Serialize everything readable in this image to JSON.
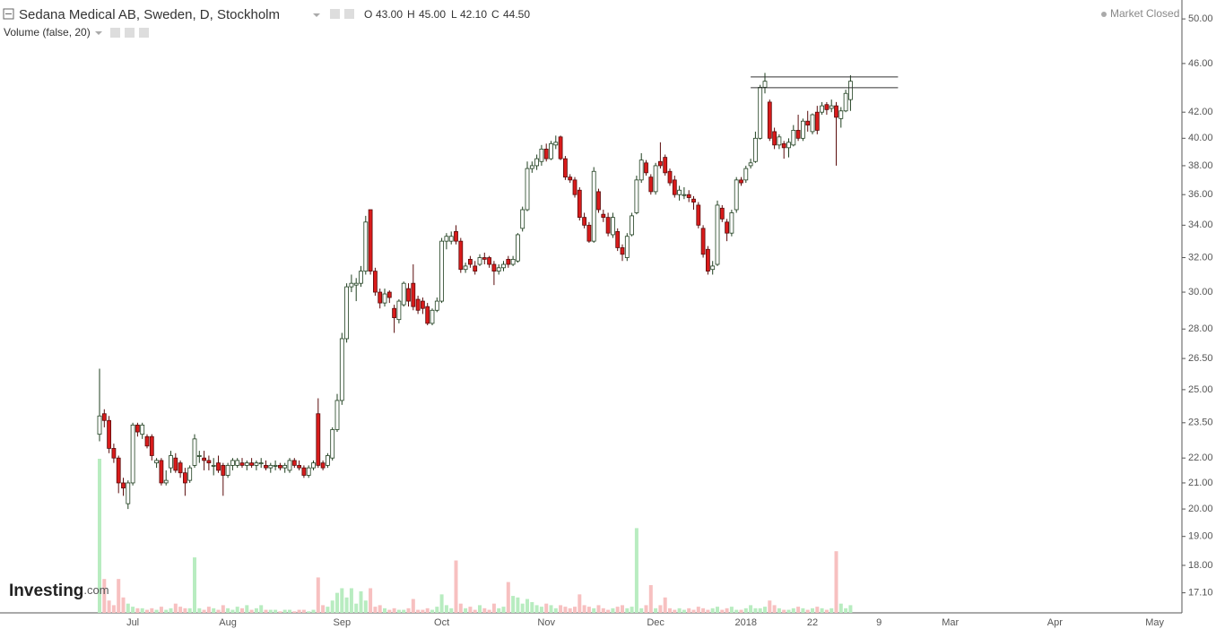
{
  "chart_data": {
    "type": "candlestick",
    "title": "Sedana Medical AB, Sweden, D, Stockholm",
    "ohlc_labels": [
      "O",
      "H",
      "L",
      "C"
    ],
    "ohlc_values": [
      "43.00",
      "45.00",
      "42.10",
      "44.50"
    ],
    "volume_label": "Volume (false, 20)",
    "status": "Market Closed",
    "logo": "Investing",
    "logo_suffix": ".com",
    "log_scale": true,
    "grid": false,
    "up_color": "#ffffff",
    "up_edge": "#1f3f1f",
    "down_color": "#d91b1b",
    "down_edge": "#5a0c0c",
    "volume_up_color": "#b8ecc0",
    "volume_down_color": "#f7c0c0",
    "ylim": [
      16.47,
      51.8
    ],
    "yticks": [
      {
        "value": 50,
        "label": "50.00"
      },
      {
        "value": 46,
        "label": "46.00"
      },
      {
        "value": 42,
        "label": "42.00"
      },
      {
        "value": 40,
        "label": "40.00"
      },
      {
        "value": 38,
        "label": "38.00"
      },
      {
        "value": 36,
        "label": "36.00"
      },
      {
        "value": 34,
        "label": "34.00"
      },
      {
        "value": 32,
        "label": "32.00"
      },
      {
        "value": 30,
        "label": "30.00"
      },
      {
        "value": 28,
        "label": "28.00"
      },
      {
        "value": 26.5,
        "label": "26.50"
      },
      {
        "value": 25,
        "label": "25.00"
      },
      {
        "value": 23.5,
        "label": "23.50"
      },
      {
        "value": 22,
        "label": "22.00"
      },
      {
        "value": 21,
        "label": "21.00"
      },
      {
        "value": 20,
        "label": "20.00"
      },
      {
        "value": 19,
        "label": "19.00"
      },
      {
        "value": 18,
        "label": "18.00"
      },
      {
        "value": 17.1,
        "label": "17.10"
      }
    ],
    "vlim": [
      0,
      100
    ],
    "hlines": [
      44.86,
      43.97
    ],
    "categories": [
      null,
      null,
      null,
      null,
      null,
      null,
      null,
      "Jul",
      null,
      null,
      null,
      null,
      null,
      null,
      null,
      null,
      null,
      null,
      null,
      null,
      null,
      null,
      null,
      null,
      null,
      null,
      null,
      "Aug",
      null,
      null,
      null,
      null,
      null,
      null,
      null,
      null,
      null,
      null,
      null,
      null,
      null,
      null,
      null,
      null,
      null,
      null,
      null,
      null,
      null,
      null,
      null,
      "Sep",
      null,
      null,
      null,
      null,
      null,
      null,
      null,
      null,
      null,
      null,
      null,
      null,
      null,
      null,
      null,
      null,
      null,
      null,
      null,
      null,
      "Oct",
      null,
      null,
      null,
      null,
      null,
      null,
      null,
      null,
      null,
      null,
      null,
      null,
      null,
      null,
      null,
      null,
      null,
      null,
      null,
      null,
      null,
      "Nov",
      null,
      null,
      null,
      null,
      null,
      null,
      null,
      null,
      null,
      null,
      null,
      null,
      null,
      null,
      null,
      null,
      null,
      null,
      null,
      null,
      null,
      null,
      "Dec",
      null,
      null,
      null,
      null,
      null,
      null,
      null,
      null,
      null,
      null,
      null,
      null,
      null,
      null,
      null,
      null,
      null,
      null,
      "2018",
      null,
      null,
      null,
      null,
      null,
      null,
      null,
      null,
      null,
      null,
      null,
      null,
      null,
      "22",
      null,
      null,
      null,
      null,
      null,
      null,
      null,
      null,
      null,
      null,
      null,
      null,
      null,
      "9",
      null,
      null,
      null,
      null,
      null,
      null,
      null,
      null,
      null,
      null,
      null,
      null,
      null,
      null,
      "Mar",
      null,
      null,
      null,
      null,
      null,
      null,
      null,
      null,
      null,
      null,
      null,
      null,
      null,
      null,
      null,
      null,
      null,
      null,
      null,
      null,
      null,
      "Apr",
      null,
      null,
      null,
      null,
      null,
      null,
      null,
      null,
      null,
      null,
      null,
      null,
      null,
      null,
      null,
      null,
      null,
      null,
      null,
      null,
      "May",
      null,
      null,
      null
    ],
    "ohlc": [
      [
        23.0,
        26.0,
        22.7,
        23.8
      ],
      [
        23.9,
        24.1,
        23.3,
        23.6
      ],
      [
        23.6,
        23.8,
        22.2,
        22.4
      ],
      [
        22.4,
        22.6,
        21.8,
        22.0
      ],
      [
        22.0,
        22.1,
        20.6,
        21.0
      ],
      [
        21.0,
        21.2,
        20.5,
        20.8
      ],
      [
        20.2,
        21.1,
        20.0,
        21.0
      ],
      [
        21.0,
        23.5,
        20.9,
        23.4
      ],
      [
        23.4,
        23.5,
        22.9,
        23.1
      ],
      [
        23.0,
        23.5,
        22.8,
        23.4
      ],
      [
        22.9,
        23.0,
        22.4,
        22.5
      ],
      [
        22.9,
        23.0,
        21.9,
        22.1
      ],
      [
        21.8,
        22.0,
        21.6,
        21.9
      ],
      [
        21.9,
        22.0,
        20.9,
        21.0
      ],
      [
        21.0,
        21.5,
        20.9,
        21.1
      ],
      [
        21.6,
        22.3,
        21.4,
        22.1
      ],
      [
        22.0,
        22.2,
        21.4,
        21.5
      ],
      [
        21.8,
        21.9,
        21.2,
        21.4
      ],
      [
        21.4,
        21.6,
        20.5,
        21.0
      ],
      [
        21.1,
        21.7,
        21.0,
        21.6
      ],
      [
        21.7,
        23.0,
        21.6,
        22.8
      ],
      [
        22.1,
        22.3,
        21.8,
        22.1
      ],
      [
        22.0,
        22.3,
        21.5,
        21.9
      ],
      [
        21.9,
        22.1,
        21.5,
        21.8
      ],
      [
        21.7,
        22.0,
        21.3,
        21.7
      ],
      [
        21.8,
        22.1,
        21.4,
        21.5
      ],
      [
        21.7,
        21.8,
        20.5,
        21.3
      ],
      [
        21.3,
        21.8,
        21.2,
        21.7
      ],
      [
        21.7,
        22.0,
        21.5,
        21.9
      ],
      [
        21.7,
        22.0,
        21.6,
        21.9
      ],
      [
        21.8,
        22.0,
        21.6,
        21.7
      ],
      [
        21.7,
        21.9,
        21.5,
        21.8
      ],
      [
        21.8,
        22.0,
        21.6,
        21.7
      ],
      [
        21.7,
        21.9,
        21.5,
        21.8
      ],
      [
        21.8,
        22.0,
        21.6,
        21.8
      ],
      [
        21.7,
        21.9,
        21.5,
        21.6
      ],
      [
        21.6,
        21.8,
        21.4,
        21.7
      ],
      [
        21.7,
        21.9,
        21.5,
        21.7
      ],
      [
        21.7,
        21.8,
        21.5,
        21.6
      ],
      [
        21.6,
        21.8,
        21.4,
        21.7
      ],
      [
        21.5,
        22.0,
        21.4,
        21.9
      ],
      [
        21.9,
        22.0,
        21.6,
        21.7
      ],
      [
        21.7,
        21.9,
        21.5,
        21.6
      ],
      [
        21.6,
        21.7,
        21.2,
        21.3
      ],
      [
        21.3,
        21.7,
        21.2,
        21.6
      ],
      [
        21.6,
        21.9,
        21.5,
        21.8
      ],
      [
        23.9,
        24.6,
        21.6,
        21.7
      ],
      [
        21.8,
        21.9,
        21.5,
        21.6
      ],
      [
        21.7,
        22.2,
        21.6,
        22.1
      ],
      [
        22.0,
        23.3,
        21.9,
        23.2
      ],
      [
        23.2,
        24.8,
        23.1,
        24.5
      ],
      [
        24.5,
        27.8,
        24.3,
        27.5
      ],
      [
        27.5,
        30.5,
        27.3,
        30.3
      ],
      [
        30.3,
        31.0,
        30.0,
        30.5
      ],
      [
        30.4,
        30.8,
        29.5,
        30.5
      ],
      [
        30.5,
        31.5,
        30.3,
        31.2
      ],
      [
        31.2,
        34.6,
        31.0,
        34.2
      ],
      [
        35.0,
        35.0,
        31.0,
        31.2
      ],
      [
        31.2,
        31.4,
        29.8,
        30.0
      ],
      [
        30.0,
        30.2,
        29.1,
        29.4
      ],
      [
        29.4,
        30.2,
        29.2,
        29.9
      ],
      [
        30.0,
        30.1,
        29.4,
        29.7
      ],
      [
        29.1,
        29.3,
        27.8,
        28.6
      ],
      [
        28.5,
        29.6,
        28.3,
        29.5
      ],
      [
        29.3,
        30.6,
        29.2,
        30.5
      ],
      [
        30.2,
        30.5,
        29.2,
        29.5
      ],
      [
        30.5,
        31.6,
        29.0,
        29.2
      ],
      [
        29.6,
        29.8,
        28.8,
        29.0
      ],
      [
        29.5,
        29.7,
        28.8,
        29.1
      ],
      [
        29.2,
        29.4,
        28.2,
        28.3
      ],
      [
        28.3,
        29.1,
        28.2,
        29.0
      ],
      [
        29.0,
        29.7,
        28.9,
        29.5
      ],
      [
        29.5,
        33.2,
        29.4,
        33.0
      ],
      [
        33.0,
        33.5,
        32.5,
        33.3
      ],
      [
        33.0,
        33.6,
        32.8,
        33.3
      ],
      [
        33.6,
        34.0,
        32.8,
        33.0
      ],
      [
        33.0,
        33.2,
        31.1,
        31.3
      ],
      [
        31.3,
        31.7,
        31.1,
        31.5
      ],
      [
        31.9,
        32.1,
        31.4,
        31.6
      ],
      [
        31.5,
        31.8,
        31.0,
        31.2
      ],
      [
        31.6,
        32.2,
        31.5,
        32.0
      ],
      [
        32.0,
        32.3,
        31.6,
        31.9
      ],
      [
        32.0,
        32.1,
        31.4,
        31.6
      ],
      [
        31.6,
        31.8,
        30.4,
        31.2
      ],
      [
        31.2,
        31.6,
        31.0,
        31.4
      ],
      [
        31.4,
        31.8,
        31.2,
        31.6
      ],
      [
        31.9,
        32.1,
        31.4,
        31.6
      ],
      [
        31.6,
        32.1,
        31.5,
        31.9
      ],
      [
        31.8,
        33.5,
        31.7,
        33.4
      ],
      [
        33.8,
        35.2,
        33.6,
        35.0
      ],
      [
        35.0,
        38.3,
        34.9,
        37.8
      ],
      [
        37.8,
        38.3,
        37.5,
        38.0
      ],
      [
        38.0,
        38.8,
        37.7,
        38.5
      ],
      [
        38.3,
        39.5,
        38.0,
        39.2
      ],
      [
        39.2,
        39.6,
        38.3,
        38.5
      ],
      [
        38.5,
        39.8,
        38.4,
        39.6
      ],
      [
        39.5,
        40.2,
        39.2,
        39.7
      ],
      [
        40.1,
        40.2,
        38.4,
        38.5
      ],
      [
        38.5,
        38.7,
        37.0,
        37.2
      ],
      [
        37.2,
        37.4,
        36.8,
        37.0
      ],
      [
        37.0,
        37.2,
        35.8,
        36.0
      ],
      [
        36.3,
        36.5,
        34.3,
        34.5
      ],
      [
        34.5,
        34.8,
        33.8,
        34.0
      ],
      [
        34.0,
        34.2,
        32.9,
        33.0
      ],
      [
        33.0,
        37.9,
        32.9,
        37.6
      ],
      [
        36.2,
        36.4,
        34.8,
        35.0
      ],
      [
        34.7,
        35.0,
        34.2,
        34.5
      ],
      [
        34.5,
        34.8,
        33.3,
        33.5
      ],
      [
        33.4,
        34.8,
        33.2,
        34.5
      ],
      [
        33.6,
        33.8,
        32.4,
        32.6
      ],
      [
        32.6,
        32.8,
        31.8,
        32.2
      ],
      [
        32.0,
        33.5,
        31.8,
        33.3
      ],
      [
        33.4,
        34.8,
        33.3,
        34.6
      ],
      [
        34.8,
        37.3,
        34.7,
        37.0
      ],
      [
        37.0,
        38.9,
        36.8,
        38.4
      ],
      [
        38.2,
        38.4,
        37.3,
        37.5
      ],
      [
        37.2,
        37.4,
        36.0,
        36.2
      ],
      [
        36.2,
        38.2,
        36.0,
        38.0
      ],
      [
        38.3,
        39.7,
        37.8,
        38.0
      ],
      [
        38.6,
        38.8,
        37.3,
        37.5
      ],
      [
        37.6,
        37.8,
        36.6,
        36.8
      ],
      [
        37.0,
        37.3,
        35.8,
        36.0
      ],
      [
        36.0,
        36.6,
        35.6,
        36.3
      ],
      [
        36.0,
        36.5,
        35.7,
        36.0
      ],
      [
        36.0,
        36.3,
        35.5,
        35.8
      ],
      [
        35.7,
        35.9,
        35.0,
        35.5
      ],
      [
        35.3,
        35.5,
        33.8,
        34.0
      ],
      [
        33.8,
        34.0,
        32.0,
        32.2
      ],
      [
        32.5,
        32.7,
        31.0,
        31.2
      ],
      [
        31.3,
        31.8,
        31.0,
        31.5
      ],
      [
        31.6,
        35.6,
        31.5,
        35.3
      ],
      [
        35.1,
        35.3,
        34.2,
        34.4
      ],
      [
        34.2,
        34.4,
        33.0,
        33.5
      ],
      [
        33.5,
        35.0,
        33.3,
        34.8
      ],
      [
        35.0,
        37.2,
        34.8,
        37.0
      ],
      [
        37.0,
        37.2,
        36.6,
        36.8
      ],
      [
        37.0,
        38.0,
        36.8,
        37.8
      ],
      [
        38.0,
        38.5,
        37.8,
        38.2
      ],
      [
        38.3,
        40.5,
        38.2,
        40.0
      ],
      [
        40.0,
        44.2,
        39.9,
        44.0
      ],
      [
        44.0,
        45.2,
        43.5,
        44.5
      ],
      [
        42.8,
        43.0,
        39.8,
        40.0
      ],
      [
        40.5,
        40.8,
        39.2,
        39.5
      ],
      [
        39.5,
        40.3,
        39.2,
        40.1
      ],
      [
        39.6,
        39.8,
        38.5,
        39.3
      ],
      [
        39.3,
        40.0,
        38.6,
        39.7
      ],
      [
        39.5,
        41.0,
        39.4,
        40.6
      ],
      [
        40.6,
        41.8,
        39.8,
        40.0
      ],
      [
        40.0,
        41.5,
        39.8,
        41.3
      ],
      [
        41.3,
        42.1,
        40.5,
        41.0
      ],
      [
        40.5,
        41.9,
        40.3,
        41.8
      ],
      [
        42.0,
        42.5,
        40.3,
        40.6
      ],
      [
        42.0,
        42.8,
        41.8,
        42.5
      ],
      [
        42.6,
        42.8,
        41.8,
        42.2
      ],
      [
        42.3,
        43.0,
        42.0,
        42.5
      ],
      [
        42.5,
        42.8,
        38.0,
        41.6
      ],
      [
        41.5,
        42.4,
        40.8,
        42.1
      ],
      [
        42.1,
        43.8,
        42.0,
        43.5
      ],
      [
        43.0,
        45.0,
        42.1,
        44.5
      ],
      null,
      null,
      null,
      null,
      null,
      null,
      null,
      null,
      null,
      null,
      null,
      null,
      null,
      null,
      null,
      null,
      null,
      null,
      null,
      null,
      null,
      null,
      null,
      null,
      null,
      null,
      null,
      null,
      null,
      null,
      null,
      null,
      null,
      null,
      null,
      null,
      null,
      null,
      null,
      null,
      null,
      null,
      null,
      null,
      null,
      null,
      null,
      null,
      null,
      null,
      null,
      null,
      null,
      null,
      null,
      null,
      null,
      null,
      null,
      null,
      null,
      null,
      null,
      null,
      null,
      null,
      null
    ],
    "volume": [
      100,
      22,
      8,
      5,
      22,
      10,
      6,
      4,
      3,
      3,
      2,
      3,
      2,
      4,
      2,
      3,
      6,
      4,
      3,
      3,
      36,
      3,
      2,
      4,
      3,
      2,
      5,
      3,
      2,
      4,
      3,
      5,
      2,
      3,
      5,
      2,
      2,
      2,
      1,
      2,
      2,
      1,
      2,
      2,
      1,
      2,
      23,
      5,
      4,
      8,
      13,
      16,
      10,
      16,
      6,
      14,
      8,
      16,
      4,
      5,
      3,
      2,
      3,
      2,
      2,
      3,
      9,
      2,
      2,
      3,
      2,
      4,
      12,
      5,
      3,
      34,
      6,
      3,
      4,
      2,
      5,
      3,
      2,
      6,
      3,
      4,
      20,
      11,
      10,
      6,
      9,
      7,
      5,
      4,
      6,
      5,
      3,
      5,
      4,
      3,
      4,
      12,
      5,
      4,
      3,
      5,
      3,
      2,
      3,
      4,
      5,
      3,
      4,
      55,
      3,
      5,
      18,
      3,
      5,
      10,
      3,
      2,
      3,
      2,
      3,
      2,
      4,
      3,
      2,
      3,
      4,
      2,
      3,
      4,
      2,
      2,
      3,
      5,
      3,
      3,
      4,
      8,
      5,
      3,
      2,
      2,
      3,
      4,
      3,
      2,
      3,
      4,
      3,
      2,
      3,
      40,
      6,
      3,
      5,
      null,
      null,
      null,
      null,
      null,
      null,
      null,
      null,
      null,
      null,
      null,
      null,
      null,
      null,
      null,
      null,
      null,
      null,
      null,
      null,
      null,
      null,
      null,
      null,
      null,
      null,
      null,
      null,
      null,
      null,
      null,
      null,
      null,
      null,
      null,
      null,
      null,
      null,
      null,
      null,
      null,
      null,
      null,
      null,
      null,
      null,
      null,
      null,
      null,
      null,
      null,
      null,
      null,
      null,
      null,
      null,
      null,
      null,
      null,
      null,
      null,
      null,
      null,
      null,
      null,
      null,
      null
    ]
  }
}
